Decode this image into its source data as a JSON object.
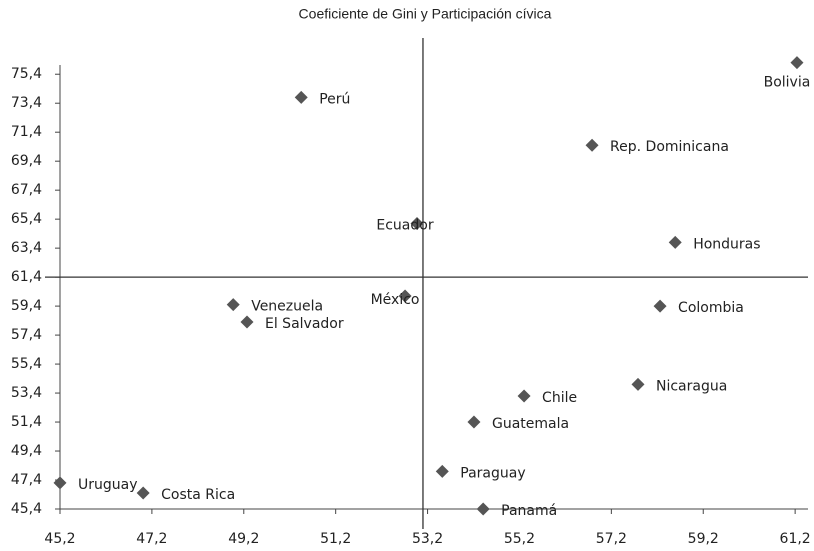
{
  "chart_data": {
    "type": "scatter",
    "title": "Coeficiente de Gini y Participación cívica",
    "point_labels": [
      "Bolivia",
      "Perú",
      "Rep. Dominicana",
      "Ecuador",
      "Honduras",
      "México",
      "Venezuela",
      "Colombia",
      "El Salvador",
      "Nicaragua",
      "Chile",
      "Guatemala",
      "Paraguay",
      "Uruguay",
      "Costa Rica",
      "Panamá"
    ],
    "x": [
      61.24,
      50.45,
      56.78,
      52.97,
      58.59,
      52.71,
      48.97,
      58.26,
      49.27,
      57.78,
      55.3,
      54.21,
      53.52,
      45.2,
      47.01,
      54.41
    ],
    "y": [
      76.2,
      73.8,
      70.5,
      65.1,
      63.8,
      60.1,
      59.5,
      59.4,
      58.3,
      54.0,
      53.2,
      51.4,
      48.0,
      47.2,
      46.5,
      45.4
    ],
    "color": "#555555",
    "reference_lines": {
      "x": 53.1,
      "y": 61.4
    },
    "xlim": [
      45.2,
      61.48
    ],
    "ylim": [
      45.4,
      77.9
    ],
    "xticks": [
      {
        "value": 45.2,
        "label": "45,2"
      },
      {
        "value": 47.2,
        "label": "47,2"
      },
      {
        "value": 49.2,
        "label": "49,2"
      },
      {
        "value": 51.2,
        "label": "51,2"
      },
      {
        "value": 53.2,
        "label": "53,2"
      },
      {
        "value": 55.2,
        "label": "55,2"
      },
      {
        "value": 57.2,
        "label": "57,2"
      },
      {
        "value": 59.2,
        "label": "59,2"
      },
      {
        "value": 61.2,
        "label": "61,2"
      }
    ],
    "yticks": [
      {
        "value": 45.4,
        "label": "45,4"
      },
      {
        "value": 47.4,
        "label": "47,4"
      },
      {
        "value": 49.4,
        "label": "49,4"
      },
      {
        "value": 51.4,
        "label": "51,4"
      },
      {
        "value": 53.4,
        "label": "53,4"
      },
      {
        "value": 55.4,
        "label": "55,4"
      },
      {
        "value": 57.4,
        "label": "57,4"
      },
      {
        "value": 59.4,
        "label": "59,4"
      },
      {
        "value": 61.4,
        "label": "61,4"
      },
      {
        "value": 63.4,
        "label": "63,4"
      },
      {
        "value": 65.4,
        "label": "65,4"
      },
      {
        "value": 67.4,
        "label": "67,4"
      },
      {
        "value": 69.4,
        "label": "69,4"
      },
      {
        "value": 71.4,
        "label": "71,4"
      },
      {
        "value": 73.4,
        "label": "73,4"
      },
      {
        "value": 75.4,
        "label": "75,4"
      }
    ]
  }
}
